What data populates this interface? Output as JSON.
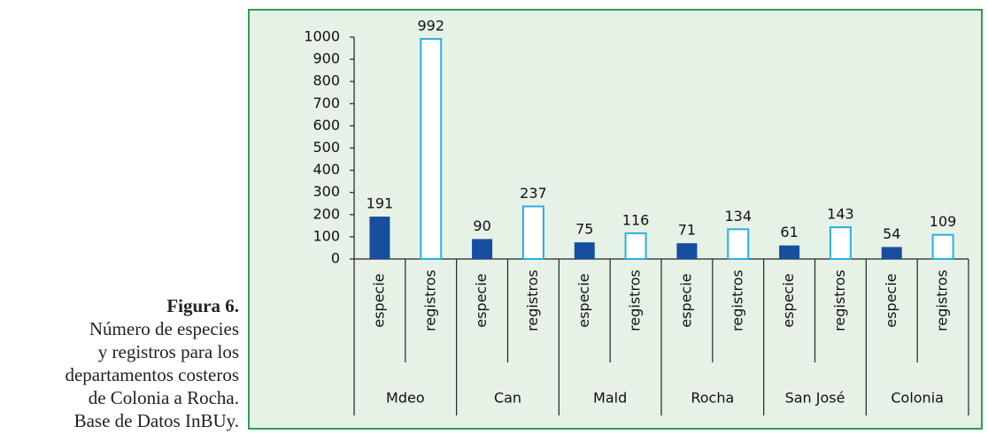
{
  "caption": {
    "title": "Figura 6.",
    "lines": [
      "Número de especies",
      "y registros para los",
      "departamentos costeros",
      "de Colonia a Rocha.",
      "Base de Datos InBUy."
    ]
  },
  "chart_data": {
    "type": "bar",
    "categories": [
      "Mdeo",
      "Can",
      "Mald",
      "Rocha",
      "San José",
      "Colonia"
    ],
    "series": [
      {
        "name": "especie",
        "color": "#174ea0",
        "style": "filled",
        "values": [
          191,
          90,
          75,
          71,
          61,
          54
        ]
      },
      {
        "name": "registros",
        "color": "#2aaee6",
        "style": "outline",
        "values": [
          992,
          237,
          116,
          134,
          143,
          109
        ]
      }
    ],
    "ylim": [
      0,
      1000
    ],
    "yticks": [
      0,
      100,
      200,
      300,
      400,
      500,
      600,
      700,
      800,
      900,
      1000
    ]
  }
}
